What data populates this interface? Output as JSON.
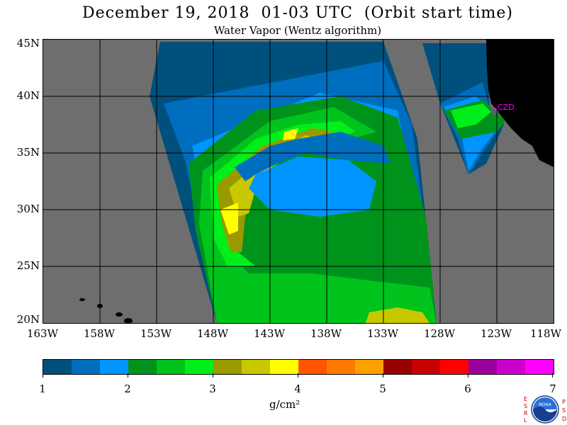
{
  "title": "December 19, 2018  01-03 UTC  (Orbit start time)",
  "subtitle": "Water Vapor (Wentz algorithm)",
  "map": {
    "lat_labels": [
      "45N",
      "40N",
      "35N",
      "30N",
      "25N",
      "20N"
    ],
    "lon_labels": [
      "163W",
      "158W",
      "153W",
      "148W",
      "143W",
      "138W",
      "133W",
      "128W",
      "123W",
      "118W"
    ],
    "lat_range": [
      20,
      45
    ],
    "lon_range": [
      -163,
      -118
    ],
    "station_marker": "CZD",
    "colors": {
      "background": "#6e6e6e",
      "land": "#000000",
      "grid": "#000000",
      "marker": "#ff00ff"
    }
  },
  "colorbar": {
    "ticks": [
      "1",
      "2",
      "3",
      "4",
      "5",
      "6",
      "7"
    ],
    "units": "g/cm²",
    "colors": [
      "#00507e",
      "#006ebe",
      "#0095ff",
      "#00931c",
      "#00c41c",
      "#00ef1a",
      "#9a9a00",
      "#c8c800",
      "#ffff00",
      "#ff5400",
      "#ff7a00",
      "#ffa000",
      "#960000",
      "#c80000",
      "#ff0000",
      "#9c009c",
      "#cc00cc",
      "#ff00ff"
    ]
  },
  "logo": {
    "left_letters": "ESRL",
    "right_letters": "PSD",
    "center": "NOAA"
  }
}
